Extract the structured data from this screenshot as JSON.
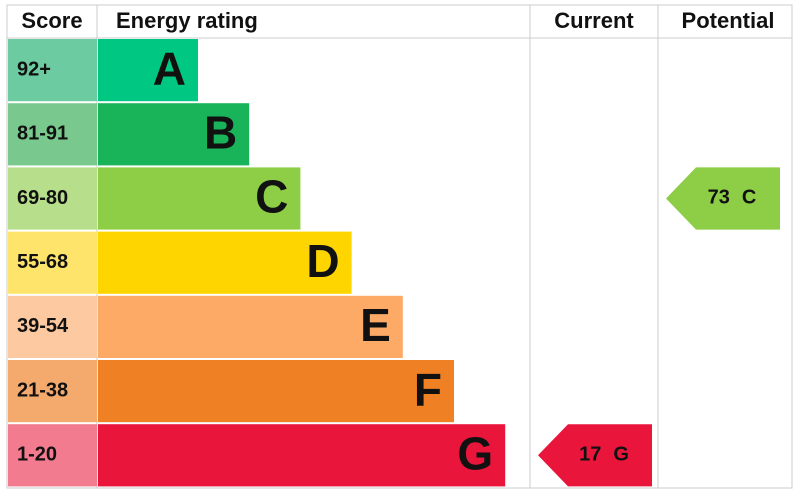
{
  "header": {
    "score": "Score",
    "rating": "Energy rating",
    "current": "Current",
    "potential": "Potential"
  },
  "bands": [
    {
      "score": "92+",
      "letter": "A",
      "color": "#00c781",
      "score_color": "#6ccba0"
    },
    {
      "score": "81-91",
      "letter": "B",
      "color": "#19b459",
      "score_color": "#79c98f"
    },
    {
      "score": "69-80",
      "letter": "C",
      "color": "#8dce46",
      "score_color": "#b7df8b"
    },
    {
      "score": "55-68",
      "letter": "D",
      "color": "#ffd500",
      "score_color": "#ffe46b"
    },
    {
      "score": "39-54",
      "letter": "E",
      "color": "#fcaa65",
      "score_color": "#fdc9a0"
    },
    {
      "score": "21-38",
      "letter": "F",
      "color": "#ef8023",
      "score_color": "#f5aa6d"
    },
    {
      "score": "1-20",
      "letter": "G",
      "color": "#e9153b",
      "score_color": "#f27b90"
    }
  ],
  "current": {
    "value": 17,
    "rating": "G"
  },
  "potential": {
    "value": 73,
    "rating": "C"
  }
}
